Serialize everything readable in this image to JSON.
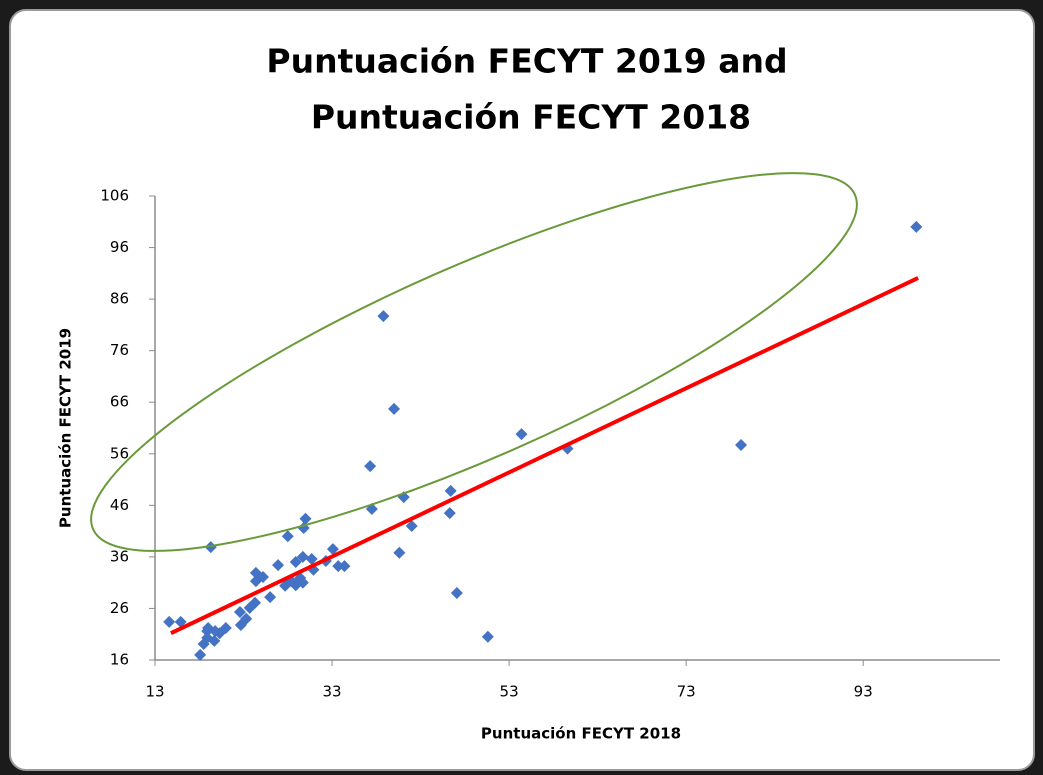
{
  "chart_data": {
    "type": "scatter",
    "title": [
      "Puntuación FECYT 2019 and",
      "Puntuación FECYT 2018"
    ],
    "x_label": "Puntuación FECYT 2018",
    "y_label": "Puntuación FECYT 2019",
    "xlim": [
      13,
      108
    ],
    "ylim": [
      16,
      106
    ],
    "xticks": [
      13,
      33,
      53,
      73,
      93
    ],
    "yticks": [
      16,
      26,
      36,
      46,
      56,
      66,
      76,
      86,
      96,
      106
    ],
    "grid": false,
    "series": [
      {
        "name": "Puntuación FECYT 2019",
        "color": "#4472c4",
        "x": [
          99,
          38.8,
          40,
          54.4,
          59.6,
          79.2,
          37.3,
          37.5,
          41.1,
          46.4,
          46.3,
          42,
          40.6,
          47.1,
          50.6,
          19.3,
          30,
          29.8,
          28,
          33.1,
          33.7,
          34.4,
          32.3,
          30.7,
          29.7,
          28.9,
          30.9,
          26.9,
          24.4,
          25.2,
          24.4,
          28.4,
          28.9,
          27.7,
          29.7,
          29.4,
          26,
          24.3,
          23.7,
          22.6,
          22.7,
          23.3,
          21,
          19.8,
          18.9,
          18.9,
          19.7,
          18.5,
          18.1,
          14.6,
          15.9,
          19,
          20.3
        ],
        "values": [
          100,
          82.7,
          64.7,
          59.8,
          57,
          57.7,
          53.6,
          45.3,
          47.6,
          48.8,
          44.5,
          42,
          36.8,
          29,
          20.5,
          37.9,
          43.4,
          41.6,
          40,
          37.5,
          34.2,
          34.2,
          35.2,
          35.6,
          36,
          35,
          33.5,
          34.4,
          32.9,
          32.1,
          31.3,
          31.3,
          30.5,
          30.4,
          31,
          31.9,
          28.2,
          27.1,
          26.1,
          25.3,
          22.8,
          24,
          22.2,
          21.6,
          21.6,
          20.3,
          19.7,
          19.1,
          17,
          23.4,
          23.4,
          22.2,
          21.2
        ]
      }
    ],
    "trendline": {
      "color": "#ff0000",
      "x": [
        14.8,
        99.2
      ],
      "values": [
        21.2,
        90.1
      ]
    }
  }
}
